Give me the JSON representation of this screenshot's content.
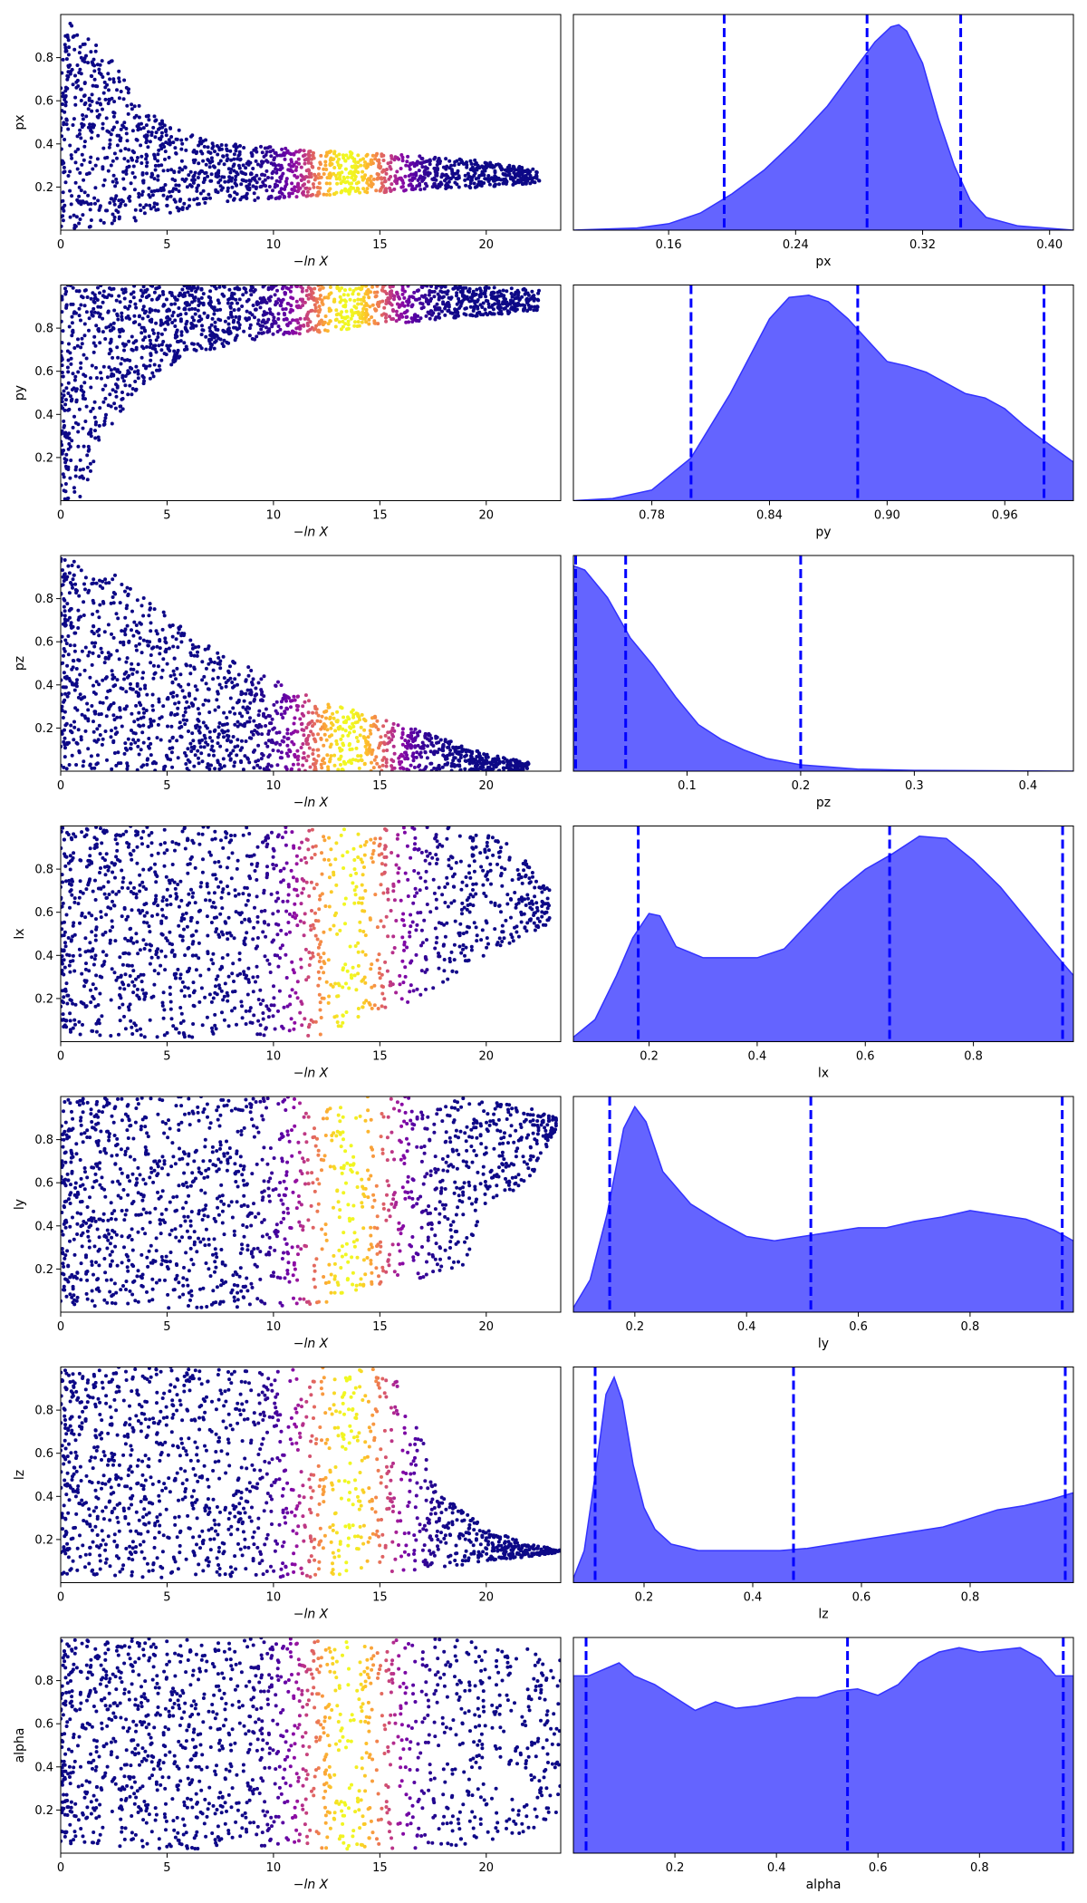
{
  "colors": {
    "axes_frame": "#000000",
    "kde_fill": "#6464ff",
    "kde_line": "#3232ff",
    "quantile_line": "#0000ff",
    "scatter_low": "#0d0887",
    "scatter_mid": "#cc4778",
    "scatter_high": "#f0f921"
  },
  "chart_data": {
    "type": "trace-plot",
    "colormap": "plasma",
    "scatter_xlabel": "−ln X",
    "scatter_xlim": [
      0,
      23.5
    ],
    "scatter_xticks": [
      "0",
      "5",
      "10",
      "15",
      "20"
    ],
    "color_peak_at": 13.5,
    "panels": [
      {
        "param": "px",
        "ylim": [
          0,
          1
        ],
        "yticks": [
          "0.2",
          "0.4",
          "0.6",
          "0.8"
        ],
        "envelope": {
          "x": [
            0,
            2,
            4,
            6,
            8,
            12,
            16,
            20,
            22.5
          ],
          "lo": [
            0.0,
            0.02,
            0.05,
            0.1,
            0.13,
            0.16,
            0.18,
            0.2,
            0.22
          ],
          "hi": [
            1.0,
            0.85,
            0.55,
            0.45,
            0.4,
            0.37,
            0.35,
            0.32,
            0.28
          ]
        },
        "hist_xlim": [
          0.1,
          0.415
        ],
        "hist_xticks": [
          0.16,
          0.24,
          0.32,
          0.4
        ],
        "hist_ticklabels": [
          "0.16",
          "0.24",
          "0.32",
          "0.40"
        ],
        "quantiles": [
          0.195,
          0.285,
          0.344
        ],
        "kde": {
          "x": [
            0.1,
            0.14,
            0.16,
            0.18,
            0.2,
            0.22,
            0.24,
            0.26,
            0.28,
            0.29,
            0.3,
            0.305,
            0.31,
            0.32,
            0.33,
            0.34,
            0.35,
            0.36,
            0.38,
            0.415
          ],
          "y": [
            0.0,
            0.01,
            0.03,
            0.08,
            0.17,
            0.28,
            0.42,
            0.58,
            0.78,
            0.88,
            0.95,
            0.96,
            0.93,
            0.78,
            0.52,
            0.3,
            0.14,
            0.06,
            0.02,
            0.0
          ]
        }
      },
      {
        "param": "py",
        "ylim": [
          0,
          1
        ],
        "yticks": [
          "0.2",
          "0.4",
          "0.6",
          "0.8"
        ],
        "envelope": {
          "x": [
            0,
            1,
            2,
            4,
            6,
            10,
            14,
            18,
            22.5
          ],
          "lo": [
            0.0,
            0.02,
            0.3,
            0.55,
            0.68,
            0.76,
            0.8,
            0.84,
            0.88
          ],
          "hi": [
            1.0,
            1.0,
            1.0,
            1.0,
            1.0,
            1.0,
            1.0,
            1.0,
            0.98
          ]
        },
        "hist_xlim": [
          0.74,
          0.995
        ],
        "hist_xticks": [
          0.78,
          0.84,
          0.9,
          0.96
        ],
        "hist_ticklabels": [
          "0.78",
          "0.84",
          "0.90",
          "0.96"
        ],
        "quantiles": [
          0.8,
          0.885,
          0.98
        ],
        "kde": {
          "x": [
            0.74,
            0.76,
            0.78,
            0.8,
            0.82,
            0.84,
            0.85,
            0.86,
            0.87,
            0.88,
            0.89,
            0.9,
            0.91,
            0.92,
            0.93,
            0.94,
            0.95,
            0.96,
            0.97,
            0.98,
            0.995
          ],
          "y": [
            0.0,
            0.01,
            0.05,
            0.2,
            0.5,
            0.85,
            0.95,
            0.96,
            0.93,
            0.85,
            0.75,
            0.65,
            0.63,
            0.6,
            0.55,
            0.5,
            0.48,
            0.43,
            0.35,
            0.28,
            0.18
          ]
        }
      },
      {
        "param": "pz",
        "ylim": [
          0,
          1
        ],
        "yticks": [
          "0.2",
          "0.4",
          "0.6",
          "0.8"
        ],
        "envelope": {
          "x": [
            0,
            2,
            4,
            6,
            8,
            10,
            12,
            14,
            16,
            18,
            20,
            22
          ],
          "lo": [
            0.0,
            0.0,
            0.0,
            0.0,
            0.0,
            0.0,
            0.0,
            0.0,
            0.0,
            0.0,
            0.0,
            0.0
          ],
          "hi": [
            1.0,
            0.95,
            0.8,
            0.65,
            0.52,
            0.43,
            0.33,
            0.28,
            0.22,
            0.15,
            0.08,
            0.04
          ]
        },
        "hist_xlim": [
          0.0,
          0.44
        ],
        "hist_xticks": [
          0.1,
          0.2,
          0.3,
          0.4
        ],
        "hist_ticklabels": [
          "0.1",
          "0.2",
          "0.3",
          "0.4"
        ],
        "quantiles": [
          0.002,
          0.046,
          0.2
        ],
        "kde": {
          "x": [
            0.0,
            0.01,
            0.03,
            0.05,
            0.07,
            0.09,
            0.11,
            0.13,
            0.15,
            0.17,
            0.2,
            0.25,
            0.3,
            0.44
          ],
          "y": [
            0.97,
            0.95,
            0.82,
            0.63,
            0.5,
            0.35,
            0.22,
            0.15,
            0.1,
            0.06,
            0.03,
            0.01,
            0.004,
            0.0
          ]
        }
      },
      {
        "param": "lx",
        "ylim": [
          0,
          1
        ],
        "yticks": [
          "0.2",
          "0.4",
          "0.6",
          "0.8"
        ],
        "envelope": {
          "x": [
            0,
            4,
            8,
            12,
            15,
            17,
            19,
            21,
            23
          ],
          "lo": [
            0.03,
            0.02,
            0.02,
            0.02,
            0.15,
            0.2,
            0.35,
            0.45,
            0.55
          ],
          "hi": [
            1.0,
            1.0,
            1.0,
            1.0,
            1.0,
            1.0,
            1.0,
            0.95,
            0.7
          ]
        },
        "hist_xlim": [
          0.06,
          0.985
        ],
        "hist_xticks": [
          0.2,
          0.4,
          0.6,
          0.8
        ],
        "hist_ticklabels": [
          "0.2",
          "0.4",
          "0.6",
          "0.8"
        ],
        "quantiles": [
          0.18,
          0.645,
          0.965
        ],
        "kde": {
          "x": [
            0.06,
            0.1,
            0.14,
            0.17,
            0.2,
            0.22,
            0.25,
            0.3,
            0.35,
            0.4,
            0.45,
            0.5,
            0.55,
            0.6,
            0.65,
            0.7,
            0.75,
            0.8,
            0.85,
            0.9,
            0.95,
            0.985
          ],
          "y": [
            0.02,
            0.1,
            0.3,
            0.47,
            0.58,
            0.57,
            0.43,
            0.38,
            0.38,
            0.38,
            0.42,
            0.55,
            0.68,
            0.78,
            0.85,
            0.93,
            0.92,
            0.82,
            0.7,
            0.55,
            0.4,
            0.3
          ]
        }
      },
      {
        "param": "ly",
        "ylim": [
          0,
          1
        ],
        "yticks": [
          "0.2",
          "0.4",
          "0.6",
          "0.8"
        ],
        "envelope": {
          "x": [
            0,
            4,
            8,
            12,
            15,
            17,
            18,
            19,
            20,
            22,
            23.3
          ],
          "lo": [
            0.03,
            0.02,
            0.02,
            0.02,
            0.1,
            0.15,
            0.2,
            0.2,
            0.5,
            0.6,
            0.85
          ],
          "hi": [
            1.0,
            1.0,
            1.0,
            1.0,
            1.0,
            1.0,
            1.0,
            1.0,
            0.98,
            0.95,
            0.9
          ]
        },
        "hist_xlim": [
          0.09,
          0.985
        ],
        "hist_xticks": [
          0.2,
          0.4,
          0.6,
          0.8
        ],
        "hist_ticklabels": [
          "0.2",
          "0.4",
          "0.6",
          "0.8"
        ],
        "quantiles": [
          0.155,
          0.515,
          0.965
        ],
        "kde": {
          "x": [
            0.09,
            0.12,
            0.15,
            0.18,
            0.2,
            0.22,
            0.25,
            0.3,
            0.35,
            0.4,
            0.45,
            0.5,
            0.55,
            0.6,
            0.65,
            0.7,
            0.75,
            0.8,
            0.85,
            0.9,
            0.95,
            0.985
          ],
          "y": [
            0.02,
            0.15,
            0.45,
            0.85,
            0.95,
            0.88,
            0.65,
            0.5,
            0.42,
            0.35,
            0.33,
            0.35,
            0.37,
            0.39,
            0.39,
            0.42,
            0.44,
            0.47,
            0.45,
            0.43,
            0.38,
            0.33
          ]
        }
      },
      {
        "param": "lz",
        "ylim": [
          0,
          1
        ],
        "yticks": [
          "0.2",
          "0.4",
          "0.6",
          "0.8"
        ],
        "envelope": {
          "x": [
            0,
            4,
            8,
            12,
            15,
            16,
            18,
            20,
            22,
            23.5
          ],
          "lo": [
            0.03,
            0.02,
            0.02,
            0.02,
            0.05,
            0.05,
            0.07,
            0.1,
            0.12,
            0.14
          ],
          "hi": [
            1.0,
            1.0,
            1.0,
            1.0,
            1.0,
            0.95,
            0.4,
            0.25,
            0.18,
            0.15
          ]
        },
        "hist_xlim": [
          0.07,
          0.99
        ],
        "hist_xticks": [
          0.2,
          0.4,
          0.6,
          0.8
        ],
        "hist_ticklabels": [
          "0.2",
          "0.4",
          "0.6",
          "0.8"
        ],
        "quantiles": [
          0.11,
          0.475,
          0.975
        ],
        "kde": {
          "x": [
            0.07,
            0.09,
            0.11,
            0.13,
            0.145,
            0.16,
            0.18,
            0.2,
            0.22,
            0.25,
            0.3,
            0.35,
            0.4,
            0.45,
            0.5,
            0.55,
            0.6,
            0.65,
            0.7,
            0.75,
            0.8,
            0.85,
            0.9,
            0.95,
            0.99
          ],
          "y": [
            0.02,
            0.15,
            0.5,
            0.88,
            0.96,
            0.85,
            0.55,
            0.35,
            0.25,
            0.18,
            0.15,
            0.15,
            0.15,
            0.15,
            0.16,
            0.18,
            0.2,
            0.22,
            0.24,
            0.26,
            0.3,
            0.34,
            0.36,
            0.39,
            0.42
          ]
        }
      },
      {
        "param": "alpha",
        "ylim": [
          0,
          1
        ],
        "yticks": [
          "0.2",
          "0.4",
          "0.6",
          "0.8"
        ],
        "envelope": {
          "x": [
            0,
            4,
            8,
            12,
            16,
            18,
            20,
            22,
            23.5
          ],
          "lo": [
            0.03,
            0.02,
            0.02,
            0.02,
            0.02,
            0.03,
            0.05,
            0.1,
            0.2
          ],
          "hi": [
            1.0,
            1.0,
            1.0,
            1.0,
            1.0,
            1.0,
            0.98,
            0.95,
            0.9
          ]
        },
        "hist_xlim": [
          0.0,
          0.985
        ],
        "hist_xticks": [
          0.2,
          0.4,
          0.6,
          0.8
        ],
        "hist_ticklabels": [
          "0.2",
          "0.4",
          "0.6",
          "0.8"
        ],
        "quantiles": [
          0.025,
          0.54,
          0.965
        ],
        "kde": {
          "x": [
            0.0,
            0.03,
            0.06,
            0.09,
            0.12,
            0.16,
            0.2,
            0.24,
            0.28,
            0.32,
            0.36,
            0.4,
            0.44,
            0.48,
            0.52,
            0.56,
            0.6,
            0.64,
            0.68,
            0.72,
            0.76,
            0.8,
            0.84,
            0.88,
            0.92,
            0.95,
            0.985
          ],
          "y": [
            0.82,
            0.82,
            0.85,
            0.88,
            0.82,
            0.78,
            0.72,
            0.66,
            0.7,
            0.67,
            0.68,
            0.7,
            0.72,
            0.72,
            0.75,
            0.76,
            0.73,
            0.78,
            0.88,
            0.93,
            0.95,
            0.93,
            0.94,
            0.95,
            0.9,
            0.82,
            0.82
          ]
        }
      }
    ]
  }
}
